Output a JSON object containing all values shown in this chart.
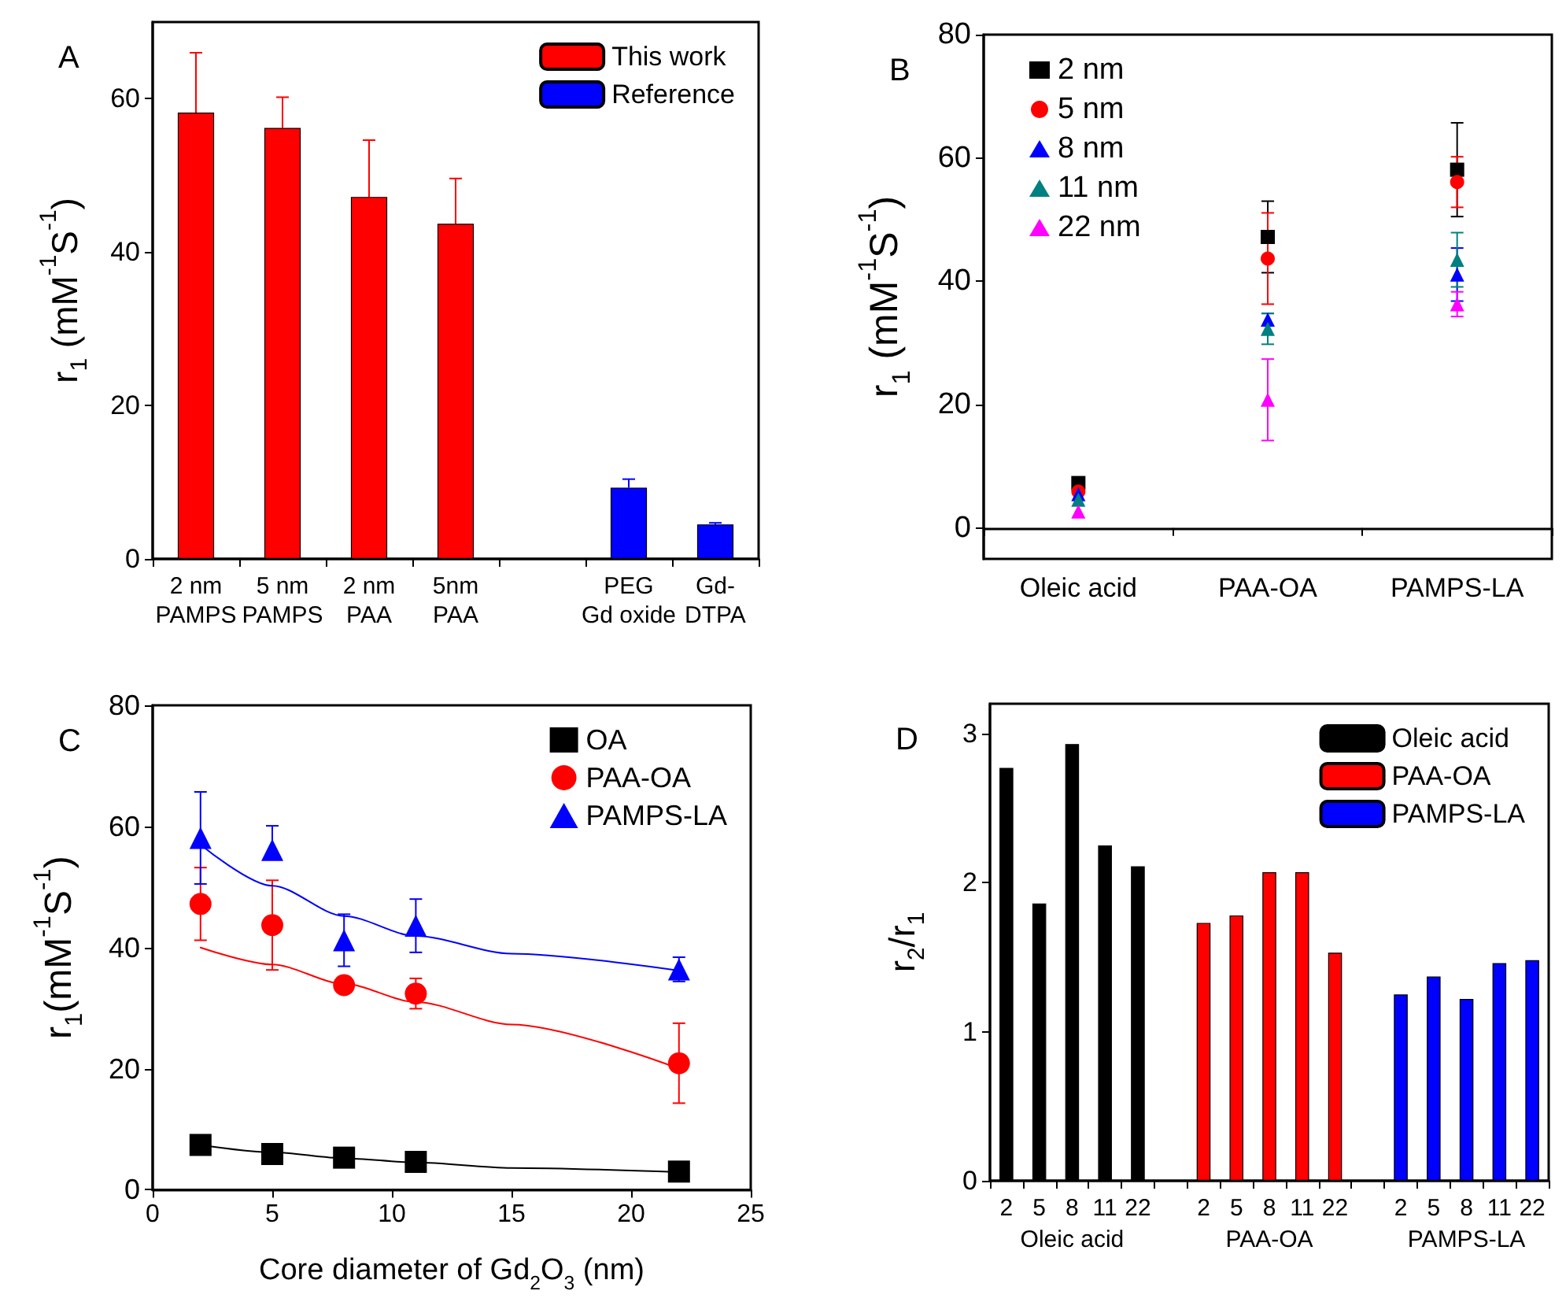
{
  "chart_data": [
    {
      "type": "bar",
      "title": "A",
      "ylabel": "r$_{1}$ (mM$^{-1}$S$^{-1}$)",
      "categories": [
        "2 nm\nPAMPS",
        "5 nm\nPAMPS",
        "2 nm\nPAA",
        "5nm\nPAA",
        null,
        "PEG\nGd oxide",
        "Gd-\nDTPA"
      ],
      "stacked": true,
      "ylim": [
        0,
        70
      ],
      "yticks": [
        0,
        20,
        40,
        60
      ],
      "legend": "top right",
      "series": [
        {
          "name": "This work",
          "color": "#ff0000",
          "values": [
            58.2,
            56.2,
            47.2,
            43.7,
            null,
            null,
            null
          ],
          "errors": [
            [
              58.2,
              66.0
            ],
            [
              56.2,
              60.2
            ],
            [
              47.2,
              54.6
            ],
            [
              43.7,
              49.6
            ],
            null,
            null,
            null
          ]
        },
        {
          "name": "Reference",
          "color": "#0000ff",
          "values": [
            null,
            null,
            null,
            null,
            null,
            9.3,
            4.5
          ],
          "errors": [
            null,
            null,
            null,
            null,
            null,
            [
              9.3,
              10.4
            ],
            [
              4.5,
              4.7
            ]
          ]
        }
      ]
    },
    {
      "type": "scatter",
      "title": "B",
      "ylabel": "r$_{1}$ (mM$^{-1}$S$^{-1}$)",
      "categories": [
        "Oleic acid",
        "PAA-OA",
        "PAMPS-LA"
      ],
      "ylim": [
        -5,
        80
      ],
      "yticks": [
        0,
        20,
        40,
        60,
        80
      ],
      "legend": "top left",
      "series": [
        {
          "name": "2 nm",
          "color": "#000000",
          "marker": "square",
          "values": [
            7.3,
            47.2,
            58.1
          ],
          "errors": [
            null,
            5.8,
            7.6
          ]
        },
        {
          "name": "5 nm",
          "color": "#ff0000",
          "marker": "circle",
          "values": [
            5.9,
            43.7,
            56.1
          ],
          "errors": [
            null,
            7.4,
            4.1
          ]
        },
        {
          "name": "8 nm",
          "color": "#0000ff",
          "marker": "triangle",
          "values": [
            5.5,
            33.8,
            41.1
          ],
          "errors": [
            null,
            1.0,
            4.3
          ]
        },
        {
          "name": "11 nm",
          "color": "#008080",
          "marker": "triangle",
          "values": [
            4.6,
            32.3,
            43.5
          ],
          "errors": [
            null,
            2.5,
            4.4
          ]
        },
        {
          "name": "22 nm",
          "color": "#ff00ff",
          "marker": "triangle",
          "values": [
            2.7,
            20.8,
            36.3
          ],
          "errors": [
            null,
            6.6,
            2.0
          ]
        }
      ]
    },
    {
      "type": "scatter",
      "title": "C",
      "xlabel": "Core diameter of Gd$_{2}$O$_{3}$ (nm)",
      "ylabel": "r$_{1}$(mM$^{-1}$S$^{-1}$)",
      "x": [
        2,
        5,
        8,
        11,
        22
      ],
      "xlim": [
        0,
        25
      ],
      "xticks": [
        0,
        5,
        10,
        15,
        20,
        25
      ],
      "ylim": [
        0,
        80
      ],
      "yticks": [
        0,
        20,
        40,
        60,
        80
      ],
      "legend": "top right",
      "series": [
        {
          "name": "OA",
          "color": "#000000",
          "marker": "square",
          "values": [
            7.4,
            5.9,
            5.3,
            4.6,
            3.0
          ]
        },
        {
          "name": "PAA-OA",
          "color": "#ff0000",
          "marker": "circle",
          "values": [
            47.2,
            43.7,
            33.8,
            32.4,
            20.9
          ],
          "errors": [
            6.0,
            7.4,
            null,
            2.5,
            6.6
          ]
        },
        {
          "name": "PAMPS-LA",
          "color": "#0000ff",
          "marker": "triangle",
          "values": [
            58.1,
            56.1,
            41.2,
            43.6,
            36.4
          ],
          "errors": [
            7.6,
            [
              56.1,
              60.1
            ],
            4.3,
            4.4,
            2.0
          ]
        },
        {
          "type": "line",
          "color": "#000000",
          "marker": "none",
          "x": [
            2,
            5,
            8,
            11,
            15,
            22
          ],
          "values": [
            7.4,
            6.2,
            5.2,
            4.5,
            3.6,
            2.9
          ]
        },
        {
          "type": "line",
          "color": "#ff0000",
          "marker": "none",
          "x": [
            2,
            5,
            8,
            11,
            15,
            22
          ],
          "values": [
            40.0,
            37.2,
            34.0,
            31.0,
            27.3,
            20.0
          ]
        },
        {
          "type": "line",
          "color": "#0000ff",
          "marker": "none",
          "x": [
            2,
            5,
            8,
            11,
            15,
            22
          ],
          "values": [
            57.0,
            50.2,
            45.2,
            41.9,
            39.0,
            36.2
          ]
        }
      ]
    },
    {
      "type": "bar",
      "title": "D",
      "ylabel": "r$_{2}$/r$_{1}$",
      "categories": [
        "2",
        "5",
        "8",
        "11",
        "22",
        null,
        "2",
        "5",
        "8",
        "11",
        "22",
        null,
        "2",
        "5",
        "8",
        "11",
        "22"
      ],
      "stacked": true,
      "ylim": [
        0,
        3.2
      ],
      "yticks": [
        0,
        1,
        2,
        3
      ],
      "legend": "top right",
      "annotations": [
        "Oleic acid",
        "PAA-OA",
        "PAMPS-LA"
      ],
      "series": [
        {
          "name": "Oleic acid",
          "color": "#000000",
          "values": [
            2.77,
            1.86,
            2.93,
            2.25,
            2.11,
            null,
            null,
            null,
            null,
            null,
            null,
            null,
            null,
            null,
            null,
            null,
            null
          ]
        },
        {
          "name": "PAA-OA",
          "color": "#ff0000",
          "values": [
            null,
            null,
            null,
            null,
            null,
            null,
            1.73,
            1.78,
            2.07,
            2.07,
            1.53,
            null,
            null,
            null,
            null,
            null,
            null
          ]
        },
        {
          "name": "PAMPS-LA",
          "color": "#0000ff",
          "values": [
            null,
            null,
            null,
            null,
            null,
            null,
            null,
            null,
            null,
            null,
            null,
            null,
            1.25,
            1.37,
            1.22,
            1.46,
            1.48
          ]
        }
      ]
    }
  ]
}
